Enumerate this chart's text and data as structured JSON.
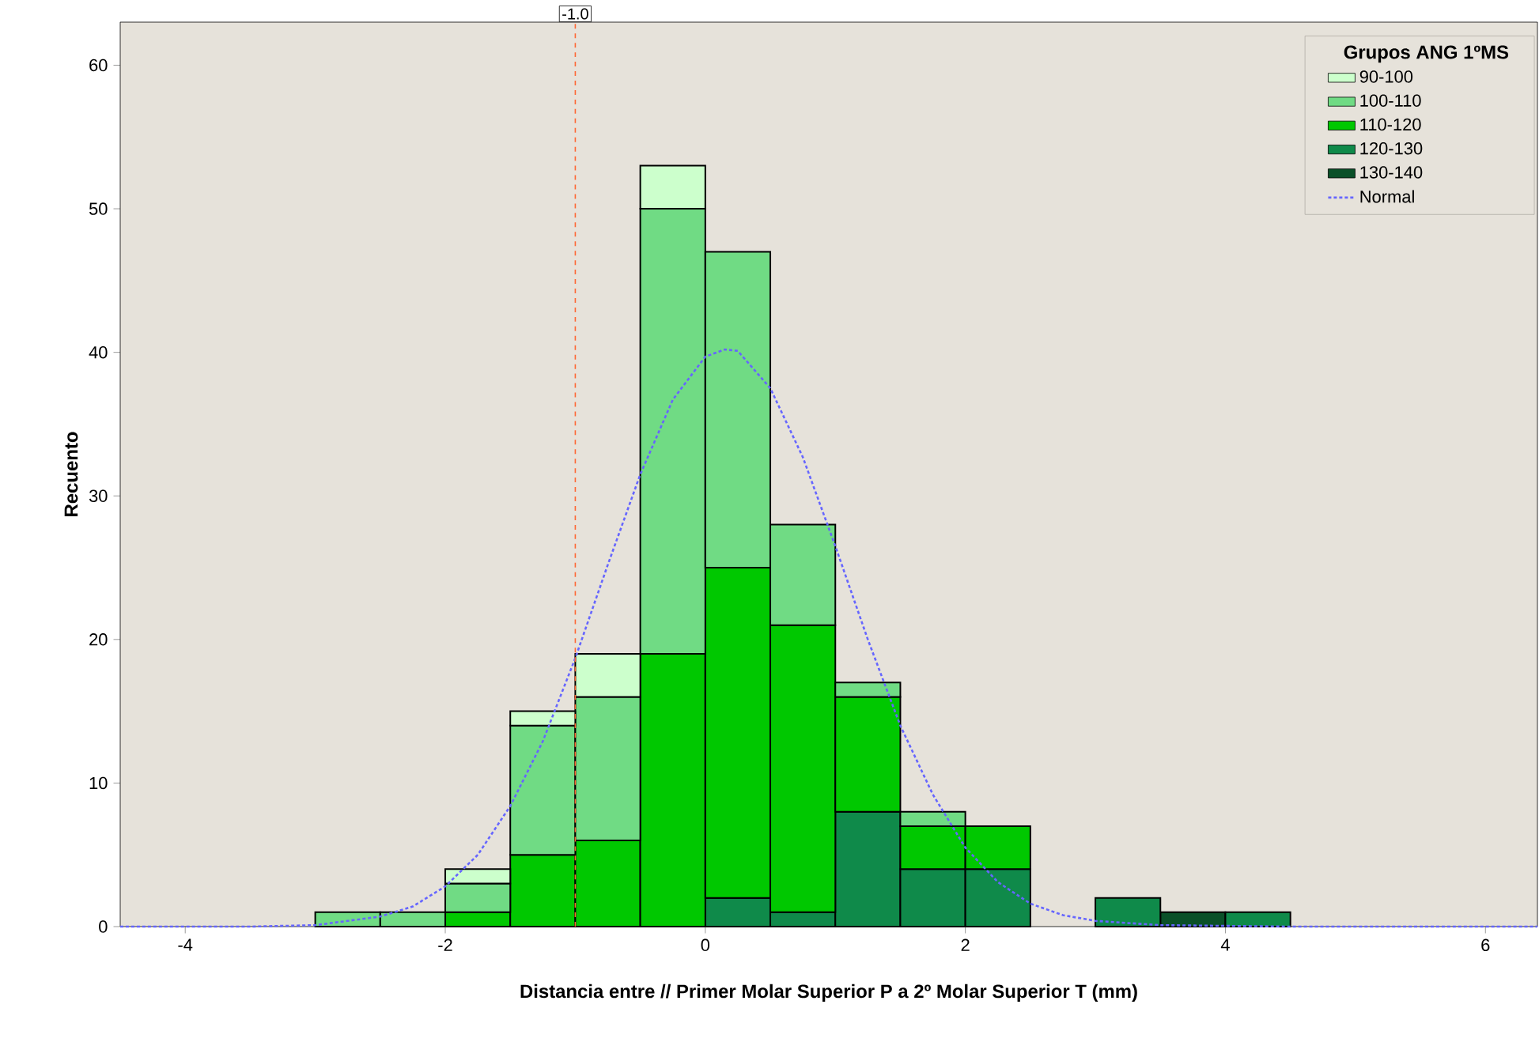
{
  "chart_data": {
    "type": "bar",
    "xlabel": "Distancia entre // Primer Molar Superior  P a 2º Molar Superior T (mm)",
    "ylabel": "Recuento",
    "legend_title": "Grupos ANG 1ºMS",
    "x": [
      -2.75,
      -2.25,
      -1.75,
      -1.25,
      -0.75,
      -0.25,
      0.25,
      0.75,
      1.25,
      1.75,
      2.25,
      2.75,
      3.25,
      3.75,
      4.25
    ],
    "stacked": true,
    "series": [
      {
        "name": "130-140",
        "color": "#0a5028",
        "values": [
          0,
          0,
          0,
          0,
          0,
          0,
          0,
          0,
          0,
          0,
          0,
          0,
          0,
          1,
          0
        ]
      },
      {
        "name": "120-130",
        "color": "#0f8a4a",
        "values": [
          0,
          0,
          0,
          0,
          0,
          0,
          2,
          1,
          8,
          4,
          4,
          0,
          2,
          0,
          1
        ]
      },
      {
        "name": "110-120",
        "color": "#00c800",
        "values": [
          0,
          0,
          1,
          5,
          6,
          19,
          23,
          20,
          8,
          3,
          3,
          0,
          0,
          0,
          0
        ]
      },
      {
        "name": "100-110",
        "color": "#70db84",
        "values": [
          1,
          1,
          2,
          9,
          10,
          31,
          22,
          7,
          1,
          1,
          0,
          0,
          0,
          0,
          0
        ]
      },
      {
        "name": "90-100",
        "color": "#ccffcc",
        "values": [
          0,
          0,
          1,
          1,
          3,
          3,
          0,
          0,
          0,
          0,
          0,
          0,
          0,
          0,
          0
        ]
      },
      {
        "name": "Normal",
        "type": "line",
        "color": "#6666ff",
        "line_style": "dotted",
        "x": [
          -4.5,
          -3.5,
          -3,
          -2.5,
          -2.25,
          -2,
          -1.75,
          -1.5,
          -1.25,
          -1,
          -0.75,
          -0.5,
          -0.25,
          0,
          0.15,
          0.25,
          0.5,
          0.75,
          1,
          1.25,
          1.5,
          1.75,
          2,
          2.25,
          2.5,
          2.75,
          3,
          3.5,
          4.5,
          6.4
        ],
        "values": [
          0,
          0,
          0.1,
          0.7,
          1.4,
          2.8,
          5,
          8.4,
          12.9,
          18.7,
          25.2,
          31.5,
          36.7,
          39.7,
          40.2,
          40.1,
          37.5,
          32.7,
          26.5,
          20,
          14,
          9.2,
          5.5,
          3.1,
          1.6,
          0.8,
          0.4,
          0.1,
          0,
          0
        ]
      }
    ],
    "xlim": [
      -4.5,
      6.4
    ],
    "ylim": [
      0,
      63
    ],
    "xticks": [
      -4,
      -2,
      0,
      2,
      4,
      6
    ],
    "yticks": [
      0,
      10,
      20,
      30,
      40,
      50,
      60
    ],
    "grid": false,
    "legend": "top right",
    "ref_lines": [
      {
        "axis": "x",
        "value": -1,
        "label": "-1.0",
        "color": "#ff6633",
        "line_style": "dashed"
      }
    ]
  }
}
